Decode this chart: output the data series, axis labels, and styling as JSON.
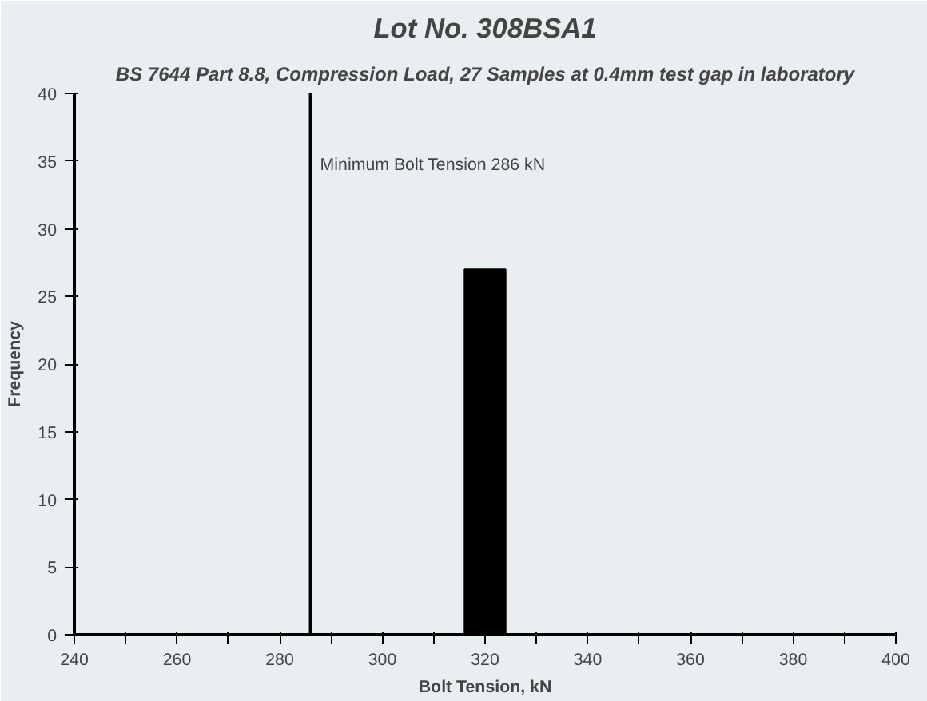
{
  "chart_data": {
    "type": "histogram",
    "title": "Lot No. 308BSA1",
    "subtitle": "BS 7644 Part 8.8, Compression Load, 27 Samples at 0.4mm test gap in laboratory",
    "xlabel": "Bolt Tension, kN",
    "ylabel": "Frequency",
    "bins": [
      316,
      324
    ],
    "values": [
      27
    ],
    "color": "#000000",
    "xlim": [
      240,
      400
    ],
    "xticks": [
      240,
      {
        "value": 250,
        "label": null
      },
      260,
      {
        "value": 270,
        "label": null
      },
      280,
      {
        "value": 290,
        "label": null
      },
      300,
      {
        "value": 310,
        "label": null
      },
      320,
      {
        "value": 330,
        "label": null
      },
      340,
      {
        "value": 350,
        "label": null
      },
      360,
      {
        "value": 370,
        "label": null
      },
      380,
      {
        "value": 390,
        "label": null
      },
      400
    ],
    "ylim": [
      0,
      40
    ],
    "yticks": [
      0,
      5,
      10,
      15,
      20,
      25,
      30,
      35,
      40
    ],
    "grid": false,
    "ref_lines": [
      {
        "axis": "x",
        "value": 286,
        "label": "Minimum Bolt Tension 286 kN",
        "color": "#000000"
      }
    ]
  }
}
